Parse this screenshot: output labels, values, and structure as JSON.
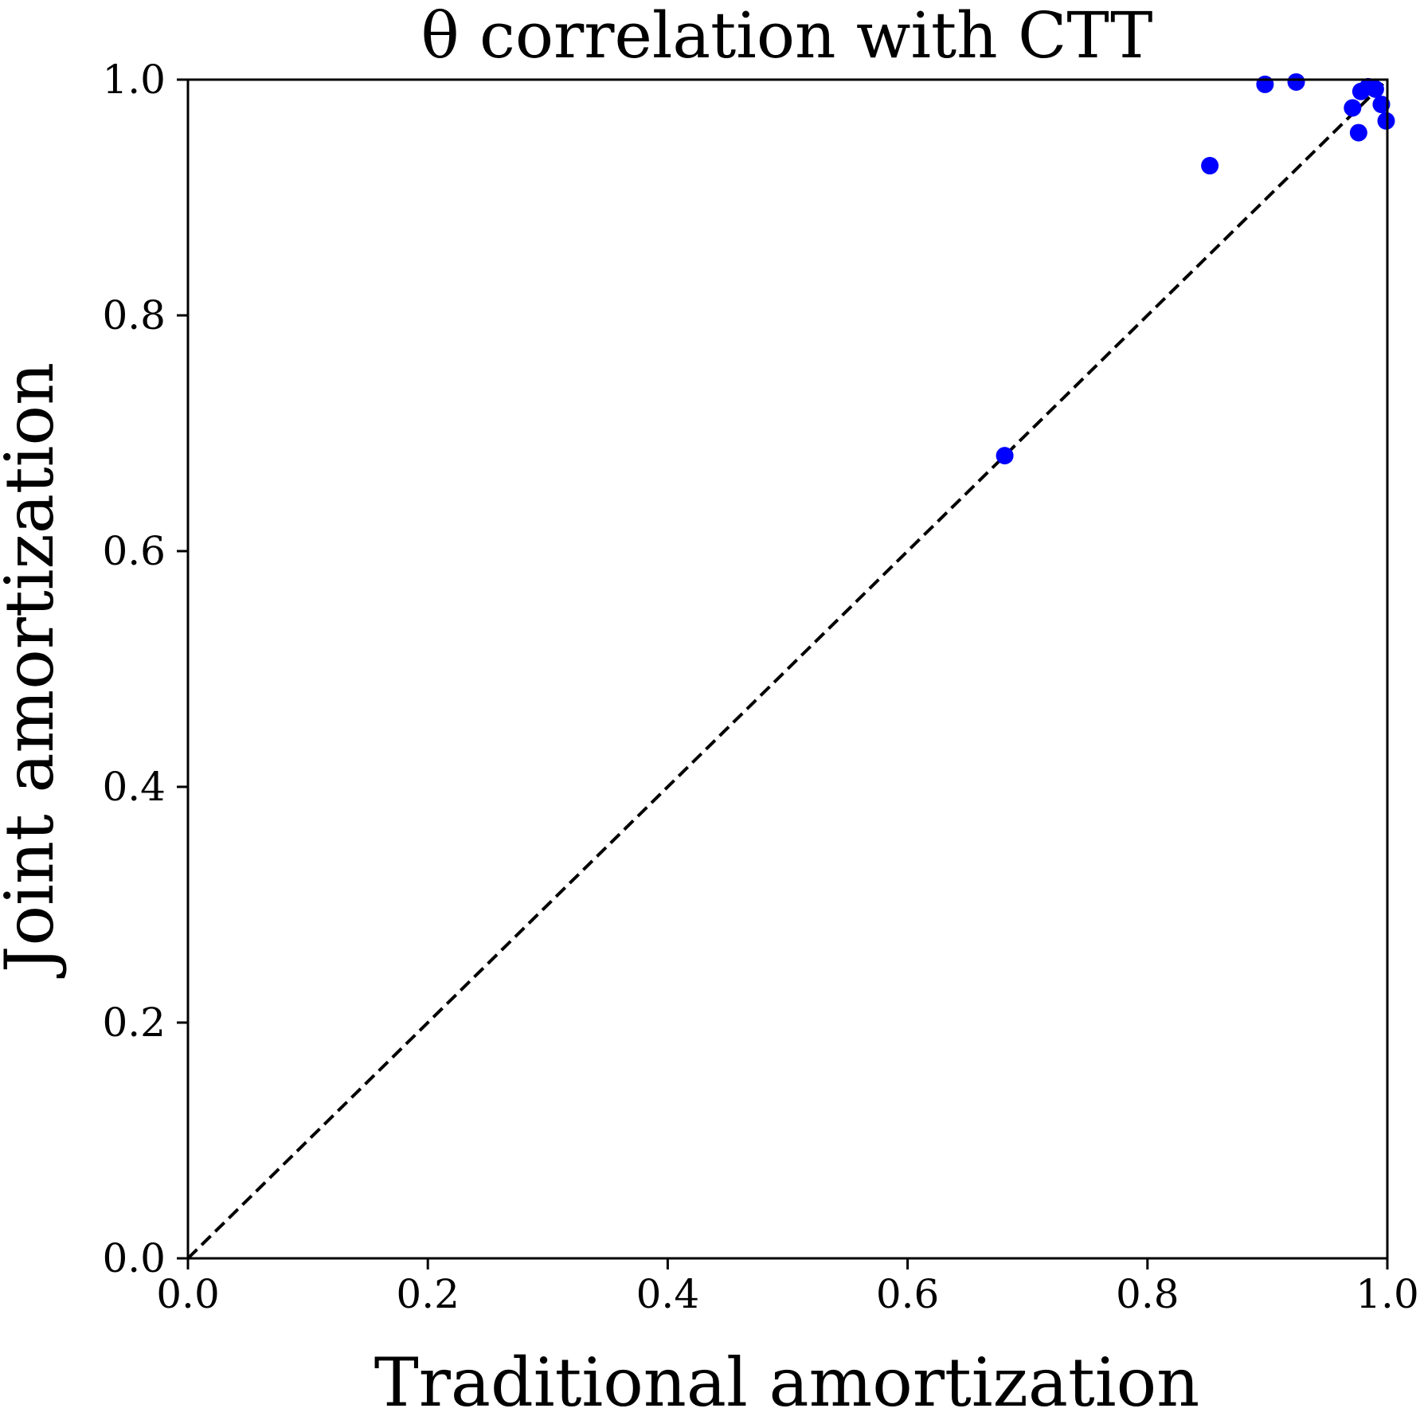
{
  "chart_data": {
    "type": "scatter",
    "title": "θ correlation with CTT",
    "xlabel": "Traditional amortization",
    "ylabel": "Joint amortization",
    "xlim": [
      0.0,
      1.0
    ],
    "ylim": [
      0.0,
      1.0
    ],
    "x_ticks": [
      "0.0",
      "0.2",
      "0.4",
      "0.6",
      "0.8",
      "1.0"
    ],
    "y_ticks": [
      "0.0",
      "0.2",
      "0.4",
      "0.6",
      "0.8",
      "1.0"
    ],
    "grid": false,
    "marker_color": "#0000ff",
    "reference_line": {
      "from": [
        0.0,
        0.0
      ],
      "to": [
        1.0,
        1.0
      ],
      "style": "dashed",
      "color": "#000000"
    },
    "points": [
      {
        "x": 0.681,
        "y": 0.681
      },
      {
        "x": 0.852,
        "y": 0.927
      },
      {
        "x": 0.898,
        "y": 0.996
      },
      {
        "x": 0.924,
        "y": 0.998
      },
      {
        "x": 0.971,
        "y": 0.976
      },
      {
        "x": 0.976,
        "y": 0.955
      },
      {
        "x": 0.978,
        "y": 0.99
      },
      {
        "x": 0.984,
        "y": 0.994
      },
      {
        "x": 0.99,
        "y": 0.992
      },
      {
        "x": 0.995,
        "y": 0.979
      },
      {
        "x": 0.999,
        "y": 0.965
      }
    ]
  }
}
